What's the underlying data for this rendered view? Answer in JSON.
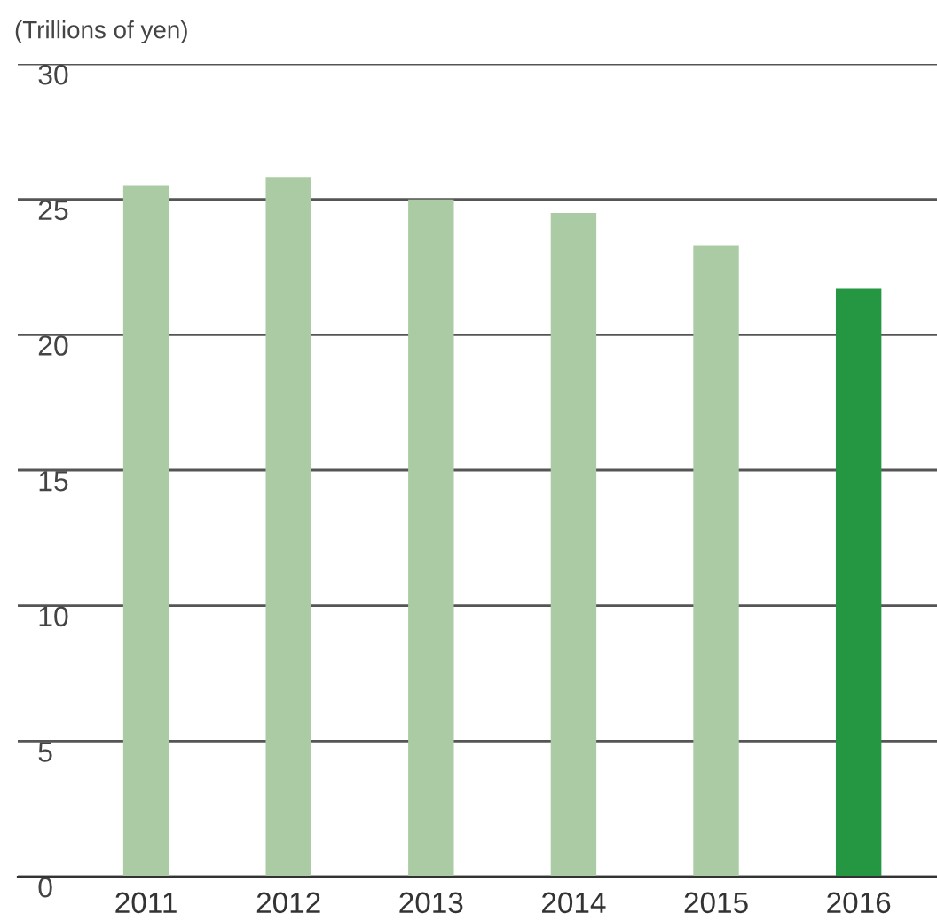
{
  "chart_data": {
    "type": "bar",
    "ylabel": "(Trillions of yen)",
    "categories": [
      "2011",
      "2012",
      "2013",
      "2014",
      "2015",
      "2016"
    ],
    "values": [
      25.5,
      25.8,
      25.0,
      24.5,
      23.3,
      21.7
    ],
    "colors": [
      "#abcba4",
      "#abcba4",
      "#abcba4",
      "#abcba4",
      "#abcba4",
      "#259642"
    ],
    "ylim": [
      0,
      30
    ],
    "yticks": [
      0,
      5,
      10,
      15,
      20,
      25,
      30
    ],
    "grid": "y"
  }
}
